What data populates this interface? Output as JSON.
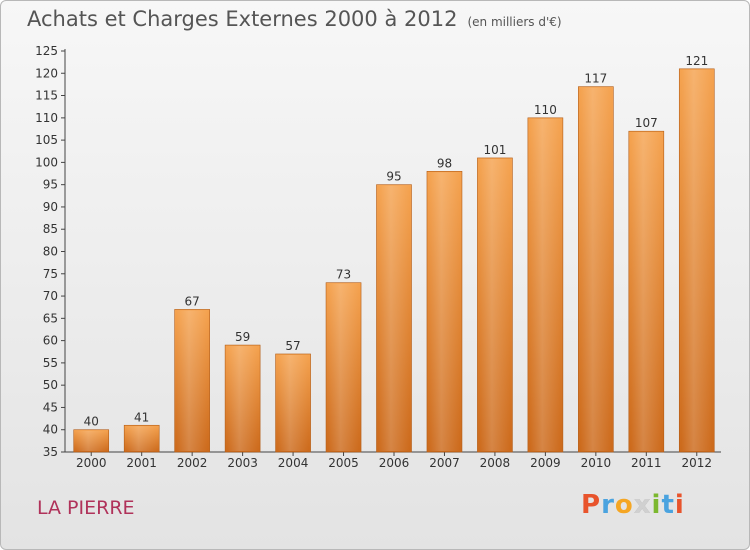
{
  "chart_data": {
    "type": "bar",
    "title": "Achats et Charges Externes 2000 à 2012",
    "unit_label": "(en milliers d'€)",
    "categories": [
      "2000",
      "2001",
      "2002",
      "2003",
      "2004",
      "2005",
      "2006",
      "2007",
      "2008",
      "2009",
      "2010",
      "2011",
      "2012"
    ],
    "values": [
      40,
      41,
      67,
      59,
      57,
      73,
      95,
      98,
      101,
      110,
      117,
      107,
      121
    ],
    "ylim": [
      35,
      125
    ],
    "yticks": [
      35,
      40,
      45,
      50,
      55,
      60,
      65,
      70,
      75,
      80,
      85,
      90,
      95,
      100,
      105,
      110,
      115,
      120,
      125
    ],
    "grid": false,
    "bar_color": "#f0953b",
    "bar_color_dark": "#c8661a"
  },
  "place_name": "LA PIERRE",
  "logo": {
    "letters": [
      "P",
      "r",
      "o",
      "x",
      "i",
      "t",
      "i"
    ],
    "colors": [
      "#e8542c",
      "#4aa3df",
      "#f5a623",
      "#d0d0d0",
      "#7cb82f",
      "#4aa3df",
      "#e8542c"
    ]
  }
}
